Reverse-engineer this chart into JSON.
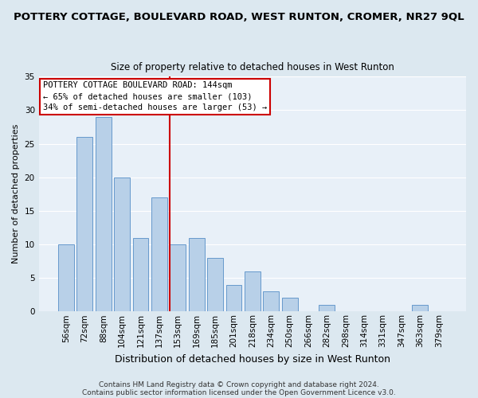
{
  "title": "POTTERY COTTAGE, BOULEVARD ROAD, WEST RUNTON, CROMER, NR27 9QL",
  "subtitle": "Size of property relative to detached houses in West Runton",
  "xlabel": "Distribution of detached houses by size in West Runton",
  "ylabel": "Number of detached properties",
  "bar_labels": [
    "56sqm",
    "72sqm",
    "88sqm",
    "104sqm",
    "121sqm",
    "137sqm",
    "153sqm",
    "169sqm",
    "185sqm",
    "201sqm",
    "218sqm",
    "234sqm",
    "250sqm",
    "266sqm",
    "282sqm",
    "298sqm",
    "314sqm",
    "331sqm",
    "347sqm",
    "363sqm",
    "379sqm"
  ],
  "bar_values": [
    10,
    26,
    29,
    20,
    11,
    17,
    10,
    11,
    8,
    4,
    6,
    3,
    2,
    0,
    1,
    0,
    0,
    0,
    0,
    1,
    0
  ],
  "bar_color": "#b8d0e8",
  "bar_edge_color": "#6699cc",
  "reference_line_color": "#cc0000",
  "annotation_text": "POTTERY COTTAGE BOULEVARD ROAD: 144sqm\n← 65% of detached houses are smaller (103)\n34% of semi-detached houses are larger (53) →",
  "annotation_box_color": "#ffffff",
  "annotation_box_edge_color": "#cc0000",
  "ylim": [
    0,
    35
  ],
  "yticks": [
    0,
    5,
    10,
    15,
    20,
    25,
    30,
    35
  ],
  "footer1": "Contains HM Land Registry data © Crown copyright and database right 2024.",
  "footer2": "Contains public sector information licensed under the Open Government Licence v3.0.",
  "bg_color": "#dce8f0",
  "plot_bg_color": "#e8f0f8",
  "grid_color": "#ffffff",
  "title_fontsize": 9.5,
  "subtitle_fontsize": 8.5,
  "ylabel_fontsize": 8,
  "xlabel_fontsize": 9,
  "tick_fontsize": 7.5,
  "annotation_fontsize": 7.5,
  "footer_fontsize": 6.5
}
